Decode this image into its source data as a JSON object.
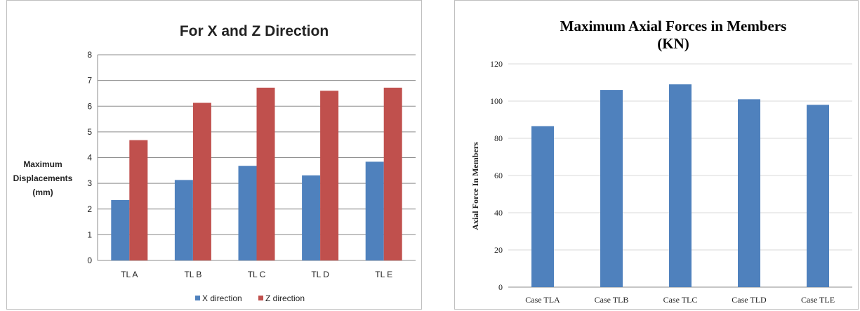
{
  "chart_data": [
    {
      "type": "bar",
      "title": "For X and Z Direction",
      "ylabel": "Maximum Displacements (mm)",
      "ylabel_lines": [
        "Maximum",
        "Displacements",
        "(mm)"
      ],
      "xlabel": "",
      "categories": [
        "TL A",
        "TL B",
        "TL C",
        "TL D",
        "TL E"
      ],
      "ylim": [
        0,
        8
      ],
      "yticks": [
        "0",
        "1",
        "2",
        "3",
        "4",
        "5",
        "6",
        "7",
        "8"
      ],
      "grid": true,
      "legend_position": "bottom",
      "series": [
        {
          "name": "X direction",
          "color": "#4f81bd",
          "values": [
            2.35,
            3.13,
            3.68,
            3.31,
            3.84
          ]
        },
        {
          "name": "Z direction",
          "color": "#c0504d",
          "values": [
            4.68,
            6.13,
            6.72,
            6.6,
            6.72
          ]
        }
      ]
    },
    {
      "type": "bar",
      "title": "Maximum Axial Forces in Members (KN)",
      "title_lines": [
        "Maximum Axial Forces in Members",
        "(KN)"
      ],
      "ylabel": "Axial Force In Members",
      "xlabel": "",
      "categories": [
        "Case TLA",
        "Case TLB",
        "Case TLC",
        "Case TLD",
        "Case TLE"
      ],
      "ylim": [
        0,
        120
      ],
      "yticks": [
        "0",
        "20",
        "40",
        "60",
        "80",
        "100",
        "120"
      ],
      "grid": true,
      "legend_position": "none",
      "series": [
        {
          "color": "#4f81bd",
          "values": [
            86.5,
            106,
            109,
            101,
            98
          ]
        }
      ]
    }
  ]
}
